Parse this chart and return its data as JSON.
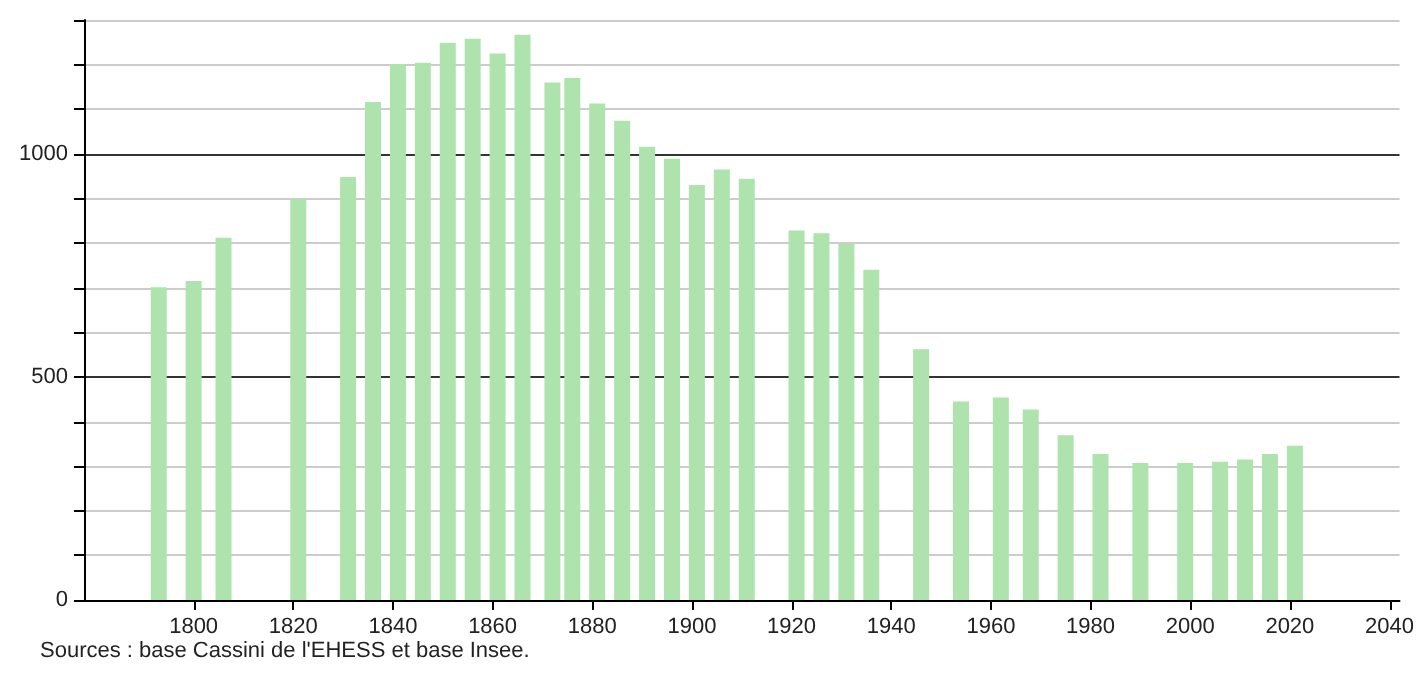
{
  "chart_data": {
    "type": "bar",
    "annotations": [
      "Sources : base Cassini de l'EHESS et base Insee."
    ],
    "x": [
      1793,
      1800,
      1806,
      1821,
      1831,
      1836,
      1841,
      1846,
      1851,
      1856,
      1861,
      1866,
      1872,
      1876,
      1881,
      1886,
      1891,
      1896,
      1901,
      1906,
      1911,
      1921,
      1926,
      1931,
      1936,
      1946,
      1954,
      1962,
      1968,
      1975,
      1982,
      1990,
      1999,
      2006,
      2011,
      2016,
      2021
    ],
    "values": [
      701,
      715,
      812,
      899,
      948,
      1116,
      1200,
      1204,
      1249,
      1258,
      1225,
      1267,
      1160,
      1170,
      1113,
      1074,
      1016,
      989,
      930,
      965,
      944,
      828,
      822,
      798,
      740,
      562,
      445,
      454,
      427,
      369,
      327,
      307,
      307,
      310,
      315,
      327,
      346
    ],
    "color": "#aee3ae",
    "xlim": [
      1778,
      2042
    ],
    "xticks": [
      1800,
      1820,
      1840,
      1860,
      1880,
      1900,
      1920,
      1940,
      1960,
      1980,
      2000,
      2020,
      2040
    ],
    "ylim": [
      0,
      1300
    ],
    "yticks": [
      0,
      {
        "value": 100,
        "label": null
      },
      {
        "value": 200,
        "label": null
      },
      {
        "value": 300,
        "label": null
      },
      {
        "value": 400,
        "label": null
      },
      500,
      {
        "value": 600,
        "label": null
      },
      {
        "value": 700,
        "label": null
      },
      {
        "value": 800,
        "label": null
      },
      {
        "value": 900,
        "label": null
      },
      1000,
      {
        "value": 1100,
        "label": null
      },
      {
        "value": 1200,
        "label": null
      },
      {
        "value": 1300,
        "label": null
      }
    ],
    "grid": "y"
  }
}
